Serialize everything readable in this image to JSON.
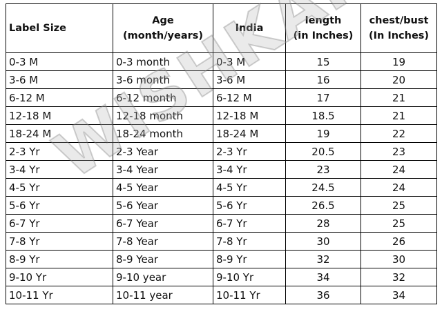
{
  "table": {
    "header": [
      [
        "Label Size"
      ],
      [
        "Age",
        "(month/years)"
      ],
      [
        "India"
      ],
      [
        "length",
        "(in Inches)"
      ],
      [
        "chest/bust",
        "(In Inches)"
      ]
    ],
    "rows": [
      [
        "0-3 M",
        "0-3 month",
        "0-3 M",
        15,
        19
      ],
      [
        "3-6 M",
        "3-6 month",
        "3-6 M",
        16,
        20
      ],
      [
        "6-12 M",
        "6-12 month",
        "6-12 M",
        17,
        21
      ],
      [
        "12-18 M",
        "12-18 month",
        "12-18 M",
        18.5,
        21
      ],
      [
        "18-24 M",
        "18-24 month",
        "18-24 M",
        19,
        22
      ],
      [
        "2-3 Yr",
        "2-3 Year",
        "2-3 Yr",
        20.5,
        23
      ],
      [
        "3-4 Yr",
        "3-4 Year",
        "3-4 Yr",
        23,
        24
      ],
      [
        "4-5 Yr",
        "4-5 Year",
        "4-5 Yr",
        24.5,
        24
      ],
      [
        "5-6 Yr",
        "5-6 Year",
        "5-6 Yr",
        26.5,
        25
      ],
      [
        "6-7 Yr",
        "6-7 Year",
        "6-7 Yr",
        28,
        25
      ],
      [
        "7-8 Yr",
        "7-8 Year",
        "7-8 Yr",
        30,
        26
      ],
      [
        "8-9 Yr",
        "8-9 Year",
        "8-9 Yr",
        32,
        30
      ],
      [
        "9-10 Yr",
        "9-10 year",
        "9-10 Yr",
        34,
        32
      ],
      [
        "10-11 Yr",
        "10-11 year",
        "10-11 Yr",
        36,
        34
      ]
    ]
  },
  "watermark": "WISHKARO"
}
